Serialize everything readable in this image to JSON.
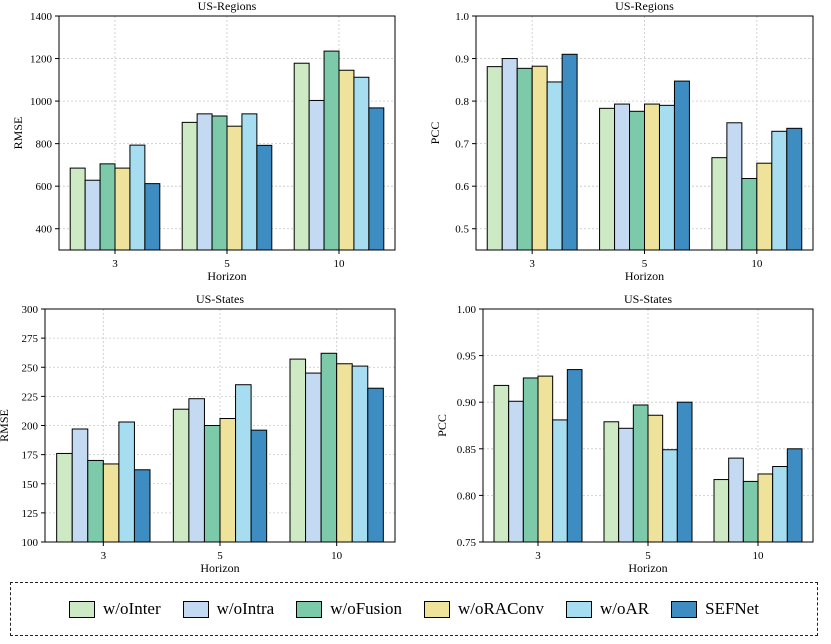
{
  "colors": {
    "w/oInter": "#cdeac4",
    "w/oIntra": "#c4daf2",
    "w/oFusion": "#7dcaab",
    "w/oRAConv": "#efe29b",
    "w/oAR": "#a7ddf0",
    "SEFNet": "#3d8cc2"
  },
  "legend": {
    "items": [
      {
        "label": "w/oInter",
        "color": "#cdeac4"
      },
      {
        "label": "w/oIntra",
        "color": "#c4daf2"
      },
      {
        "label": "w/oFusion",
        "color": "#7dcaab"
      },
      {
        "label": "w/oRAConv",
        "color": "#efe29b"
      },
      {
        "label": "w/oAR",
        "color": "#a7ddf0"
      },
      {
        "label": "SEFNet",
        "color": "#3d8cc2"
      }
    ]
  },
  "chart_data": [
    {
      "type": "bar",
      "title": "US-Regions",
      "xlabel": "Horizon",
      "ylabel": "RMSE",
      "categories": [
        "3",
        "5",
        "10"
      ],
      "ylim": [
        300,
        1400
      ],
      "yticks": [
        400,
        600,
        800,
        1000,
        1200,
        1400
      ],
      "ytick_labels": [
        "400",
        "600",
        "800",
        "1000",
        "1200",
        "1400"
      ],
      "series": [
        {
          "name": "w/oInter",
          "values": [
            685,
            900,
            1178
          ]
        },
        {
          "name": "w/oIntra",
          "values": [
            628,
            940,
            1003
          ]
        },
        {
          "name": "w/oFusion",
          "values": [
            705,
            930,
            1235
          ]
        },
        {
          "name": "w/oRAConv",
          "values": [
            685,
            882,
            1145
          ]
        },
        {
          "name": "w/oAR",
          "values": [
            793,
            940,
            1112
          ]
        },
        {
          "name": "SEFNet",
          "values": [
            612,
            792,
            968
          ]
        }
      ]
    },
    {
      "type": "bar",
      "title": "US-Regions",
      "xlabel": "Horizon",
      "ylabel": "PCC",
      "categories": [
        "3",
        "5",
        "10"
      ],
      "ylim": [
        0.45,
        1.0
      ],
      "yticks": [
        0.5,
        0.6,
        0.7,
        0.8,
        0.9,
        1.0
      ],
      "ytick_labels": [
        "0.5",
        "0.6",
        "0.7",
        "0.8",
        "0.9",
        "1.0"
      ],
      "series": [
        {
          "name": "w/oInter",
          "values": [
            0.881,
            0.783,
            0.667
          ]
        },
        {
          "name": "w/oIntra",
          "values": [
            0.9,
            0.793,
            0.749
          ]
        },
        {
          "name": "w/oFusion",
          "values": [
            0.877,
            0.776,
            0.618
          ]
        },
        {
          "name": "w/oRAConv",
          "values": [
            0.882,
            0.793,
            0.654
          ]
        },
        {
          "name": "w/oAR",
          "values": [
            0.845,
            0.79,
            0.729
          ]
        },
        {
          "name": "SEFNet",
          "values": [
            0.91,
            0.847,
            0.736
          ]
        }
      ]
    },
    {
      "type": "bar",
      "title": "US-States",
      "xlabel": "Horizon",
      "ylabel": "RMSE",
      "categories": [
        "3",
        "5",
        "10"
      ],
      "ylim": [
        100,
        300
      ],
      "yticks": [
        100,
        125,
        150,
        175,
        200,
        225,
        250,
        275,
        300
      ],
      "ytick_labels": [
        "100",
        "125",
        "150",
        "175",
        "200",
        "225",
        "250",
        "275",
        "300"
      ],
      "series": [
        {
          "name": "w/oInter",
          "values": [
            176,
            214,
            257
          ]
        },
        {
          "name": "w/oIntra",
          "values": [
            197,
            223,
            245
          ]
        },
        {
          "name": "w/oFusion",
          "values": [
            170,
            200,
            262
          ]
        },
        {
          "name": "w/oRAConv",
          "values": [
            167,
            206,
            253
          ]
        },
        {
          "name": "w/oAR",
          "values": [
            203,
            235,
            251
          ]
        },
        {
          "name": "SEFNet",
          "values": [
            162,
            196,
            232
          ]
        }
      ]
    },
    {
      "type": "bar",
      "title": "US-States",
      "xlabel": "Horizon",
      "ylabel": "PCC",
      "categories": [
        "3",
        "5",
        "10"
      ],
      "ylim": [
        0.75,
        1.0
      ],
      "yticks": [
        0.75,
        0.8,
        0.85,
        0.9,
        0.95,
        1.0
      ],
      "ytick_labels": [
        "0.75",
        "0.80",
        "0.85",
        "0.90",
        "0.95",
        "1.00"
      ],
      "series": [
        {
          "name": "w/oInter",
          "values": [
            0.918,
            0.879,
            0.817
          ]
        },
        {
          "name": "w/oIntra",
          "values": [
            0.901,
            0.872,
            0.84
          ]
        },
        {
          "name": "w/oFusion",
          "values": [
            0.926,
            0.897,
            0.815
          ]
        },
        {
          "name": "w/oRAConv",
          "values": [
            0.928,
            0.886,
            0.823
          ]
        },
        {
          "name": "w/oAR",
          "values": [
            0.881,
            0.849,
            0.831
          ]
        },
        {
          "name": "SEFNet",
          "values": [
            0.935,
            0.9,
            0.85
          ]
        }
      ]
    }
  ]
}
